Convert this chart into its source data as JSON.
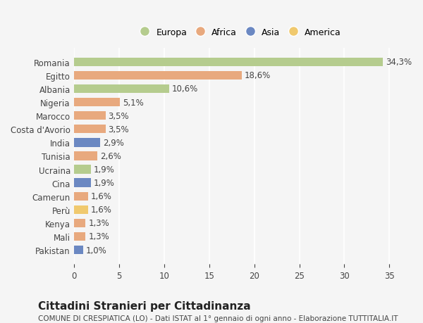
{
  "countries": [
    "Romania",
    "Egitto",
    "Albania",
    "Nigeria",
    "Marocco",
    "Costa d'Avorio",
    "India",
    "Tunisia",
    "Ucraina",
    "Cina",
    "Camerun",
    "Perù",
    "Kenya",
    "Mali",
    "Pakistan"
  ],
  "values": [
    34.3,
    18.6,
    10.6,
    5.1,
    3.5,
    3.5,
    2.9,
    2.6,
    1.9,
    1.9,
    1.6,
    1.6,
    1.3,
    1.3,
    1.0
  ],
  "labels": [
    "34,3%",
    "18,6%",
    "10,6%",
    "5,1%",
    "3,5%",
    "3,5%",
    "2,9%",
    "2,6%",
    "1,9%",
    "1,9%",
    "1,6%",
    "1,6%",
    "1,3%",
    "1,3%",
    "1,0%"
  ],
  "continents": [
    "Europa",
    "Africa",
    "Europa",
    "Africa",
    "Africa",
    "Africa",
    "Asia",
    "Africa",
    "Europa",
    "Asia",
    "Africa",
    "America",
    "Africa",
    "Africa",
    "Asia"
  ],
  "continent_colors": {
    "Europa": "#b5cc8e",
    "Africa": "#e8a97e",
    "Asia": "#6b88c2",
    "America": "#f0c96e"
  },
  "legend_order": [
    "Europa",
    "Africa",
    "Asia",
    "America"
  ],
  "title1": "Cittadini Stranieri per Cittadinanza",
  "title2": "COMUNE DI CRESPIATICA (LO) - Dati ISTAT al 1° gennaio di ogni anno - Elaborazione TUTTITALIA.IT",
  "xlim": [
    0,
    37
  ],
  "xticks": [
    0,
    5,
    10,
    15,
    20,
    25,
    30,
    35
  ],
  "background_color": "#f5f5f5",
  "bar_height": 0.65,
  "label_fontsize": 8.5,
  "ylabel_fontsize": 8.5,
  "title1_fontsize": 11,
  "title2_fontsize": 7.5,
  "legend_fontsize": 9
}
